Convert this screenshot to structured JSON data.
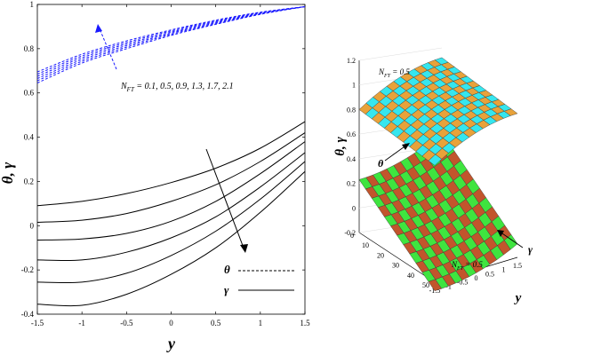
{
  "chart_data": [
    {
      "type": "line",
      "title": "",
      "xlabel": "y",
      "ylabel": "θ, γ",
      "xlim": [
        -1.5,
        1.5
      ],
      "ylim": [
        -0.4,
        1.0
      ],
      "xticks": [
        "-1.5",
        "-1",
        "-0.5",
        "0",
        "0.5",
        "1",
        "1.5"
      ],
      "yticks": [
        "-0.4",
        "-0.2",
        "0",
        "0.2",
        "0.4",
        "0.6",
        "0.8",
        "1"
      ],
      "legend": [
        {
          "name": "θ",
          "style": "dashed"
        },
        {
          "name": "γ",
          "style": "solid"
        }
      ],
      "annotation": "N_FT = 0.1, 0.5, 0.9, 1.3, 1.7, 2.1",
      "parameter_values": [
        0.1,
        0.5,
        0.9,
        1.3,
        1.7,
        2.1
      ],
      "x": [
        -1.5,
        -1.0,
        -0.5,
        0.0,
        0.5,
        1.0,
        1.5
      ],
      "series": [
        {
          "name": "θ (N_FT=0.1)",
          "style": "dashed",
          "values": [
            0.645,
            0.735,
            0.8,
            0.86,
            0.91,
            0.955,
            0.99
          ]
        },
        {
          "name": "θ (N_FT=0.5)",
          "style": "dashed",
          "values": [
            0.655,
            0.743,
            0.807,
            0.865,
            0.913,
            0.957,
            0.99
          ]
        },
        {
          "name": "θ (N_FT=0.9)",
          "style": "dashed",
          "values": [
            0.665,
            0.751,
            0.814,
            0.87,
            0.917,
            0.959,
            0.99
          ]
        },
        {
          "name": "θ (N_FT=1.3)",
          "style": "dashed",
          "values": [
            0.675,
            0.759,
            0.821,
            0.875,
            0.921,
            0.961,
            0.99
          ]
        },
        {
          "name": "θ (N_FT=1.7)",
          "style": "dashed",
          "values": [
            0.685,
            0.767,
            0.828,
            0.88,
            0.925,
            0.963,
            0.99
          ]
        },
        {
          "name": "θ (N_FT=2.1)",
          "style": "dashed",
          "values": [
            0.695,
            0.775,
            0.835,
            0.885,
            0.929,
            0.965,
            0.99
          ]
        },
        {
          "name": "γ (N_FT=0.1)",
          "style": "solid",
          "values": [
            0.09,
            0.11,
            0.145,
            0.195,
            0.26,
            0.35,
            0.47
          ]
        },
        {
          "name": "γ (N_FT=0.5)",
          "style": "solid",
          "values": [
            0.015,
            0.025,
            0.055,
            0.11,
            0.185,
            0.29,
            0.42
          ]
        },
        {
          "name": "γ (N_FT=0.9)",
          "style": "solid",
          "values": [
            -0.065,
            -0.06,
            -0.035,
            0.02,
            0.11,
            0.235,
            0.38
          ]
        },
        {
          "name": "γ (N_FT=1.3)",
          "style": "solid",
          "values": [
            -0.155,
            -0.155,
            -0.12,
            -0.055,
            0.04,
            0.175,
            0.33
          ]
        },
        {
          "name": "γ (N_FT=1.7)",
          "style": "solid",
          "values": [
            -0.255,
            -0.255,
            -0.215,
            -0.135,
            -0.025,
            0.12,
            0.29
          ]
        },
        {
          "name": "γ (N_FT=2.1)",
          "style": "solid",
          "values": [
            -0.355,
            -0.36,
            -0.31,
            -0.22,
            -0.1,
            0.06,
            0.245
          ]
        }
      ]
    },
    {
      "type": "surface",
      "title": "",
      "xlabel": "y",
      "ylabel": "",
      "zlabel": "θ, γ",
      "zlim": [
        -0.2,
        1.2
      ],
      "xticks": [
        "-1.5",
        "-1",
        "-0.5",
        "0",
        "0.5",
        "1",
        "1.5"
      ],
      "yticks": [
        "0",
        "10",
        "20",
        "30",
        "40",
        "50"
      ],
      "zticks": [
        "-0.2",
        "0",
        "0.2",
        "0.4",
        "0.6",
        "0.8",
        "1",
        "1.2"
      ],
      "annotations": [
        "N_FT = 0.5",
        "θ",
        "N_FT = 0.5",
        "γ"
      ],
      "surfaces": [
        {
          "name": "θ",
          "colors": [
            "#e8a23a",
            "#35e6ee"
          ]
        },
        {
          "name": "γ",
          "colors": [
            "#3fe43f",
            "#c2552c"
          ]
        }
      ]
    }
  ],
  "labels": {
    "left_ylabel": "θ, γ",
    "left_xlabel": "y",
    "annot_prefix": "N",
    "annot_sub": "FT",
    "annot_values": " = 0.1, 0.5, 0.9, 1.3, 1.7, 2.1",
    "legend_theta": "θ",
    "legend_gamma": "γ",
    "right_zlabel": "θ, γ",
    "right_xlabel": "y",
    "nft_prefix": "N",
    "nft_sub": "FT",
    "nft_value": " = 0.5",
    "theta": "θ",
    "gamma": "γ"
  }
}
